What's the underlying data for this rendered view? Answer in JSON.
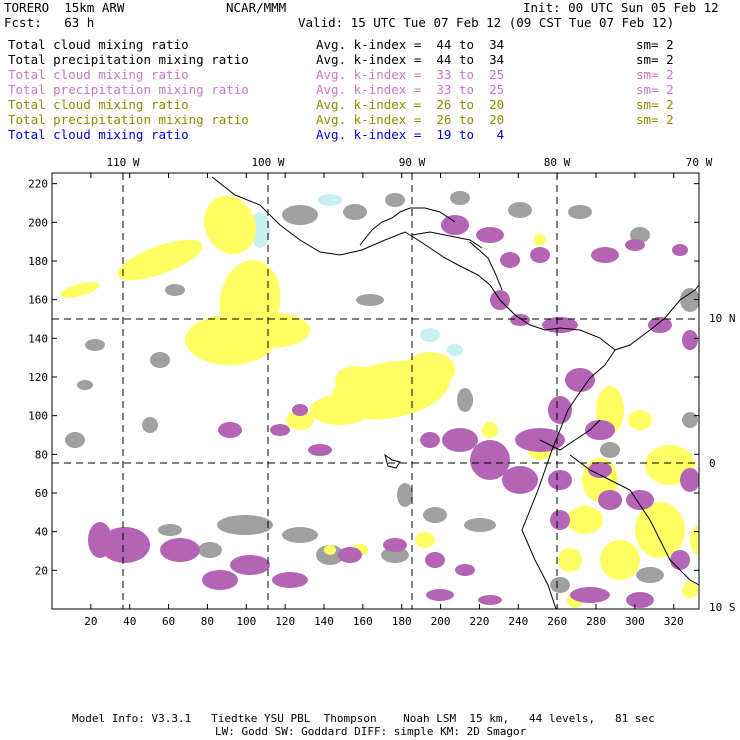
{
  "header": {
    "model": "TORERO  15km ARW",
    "center": "NCAR/MMM",
    "init": "Init: 00 UTC Sun 05 Feb 12",
    "fcst": "Fcst:   63 h",
    "valid": "Valid: 15 UTC Tue 07 Feb 12 (09 CST Tue 07 Feb 12)"
  },
  "legend": [
    {
      "name": "Total cloud mixing ratio",
      "kindex": "Avg. k-index =  44 to  34",
      "sm": "sm= 2",
      "color": "#000000"
    },
    {
      "name": "Total precipitation mixing ratio",
      "kindex": "Avg. k-index =  44 to  34",
      "sm": "sm= 2",
      "color": "#000000"
    },
    {
      "name": "Total cloud mixing ratio",
      "kindex": "Avg. k-index =  33 to  25",
      "sm": "sm= 2",
      "color": "#c878c8"
    },
    {
      "name": "Total precipitation mixing ratio",
      "kindex": "Avg. k-index =  33 to  25",
      "sm": "sm= 2",
      "color": "#c878c8"
    },
    {
      "name": "Total cloud mixing ratio",
      "kindex": "Avg. k-index =  26 to  20",
      "sm": "sm= 2",
      "color": "#8c8c00"
    },
    {
      "name": "Total precipitation mixing ratio",
      "kindex": "Avg. k-index =  26 to  20",
      "sm": "sm= 2",
      "color": "#8c8c00"
    },
    {
      "name": "Total cloud mixing ratio",
      "kindex": "Avg. k-index =  19 to   4",
      "sm": "",
      "color": "#0000dc"
    }
  ],
  "map": {
    "lon_labels": [
      "110 W",
      "100 W",
      "90 W",
      "80 W",
      "70 W"
    ],
    "lat_labels": [
      "10 N",
      "0",
      "10 S"
    ],
    "x_ticks": [
      "20",
      "40",
      "60",
      "80",
      "100",
      "120",
      "140",
      "160",
      "180",
      "200",
      "220",
      "240",
      "260",
      "280",
      "300",
      "320"
    ],
    "y_ticks": [
      "220",
      "200",
      "180",
      "160",
      "140",
      "120",
      "100",
      "80",
      "60",
      "40",
      "20"
    ],
    "colors": {
      "gray": "#a0a0a0",
      "purple": "#b464b4",
      "yellow": "#ffff64",
      "lightblue": "#c8f0f0"
    }
  },
  "footer": {
    "line1": "Model Info: V3.3.1   Tiedtke YSU PBL  Thompson    Noah LSM  15 km,   44 levels,   81 sec",
    "line2": "LW: Godd SW: Goddard DIFF: simple KM: 2D Smagor"
  }
}
